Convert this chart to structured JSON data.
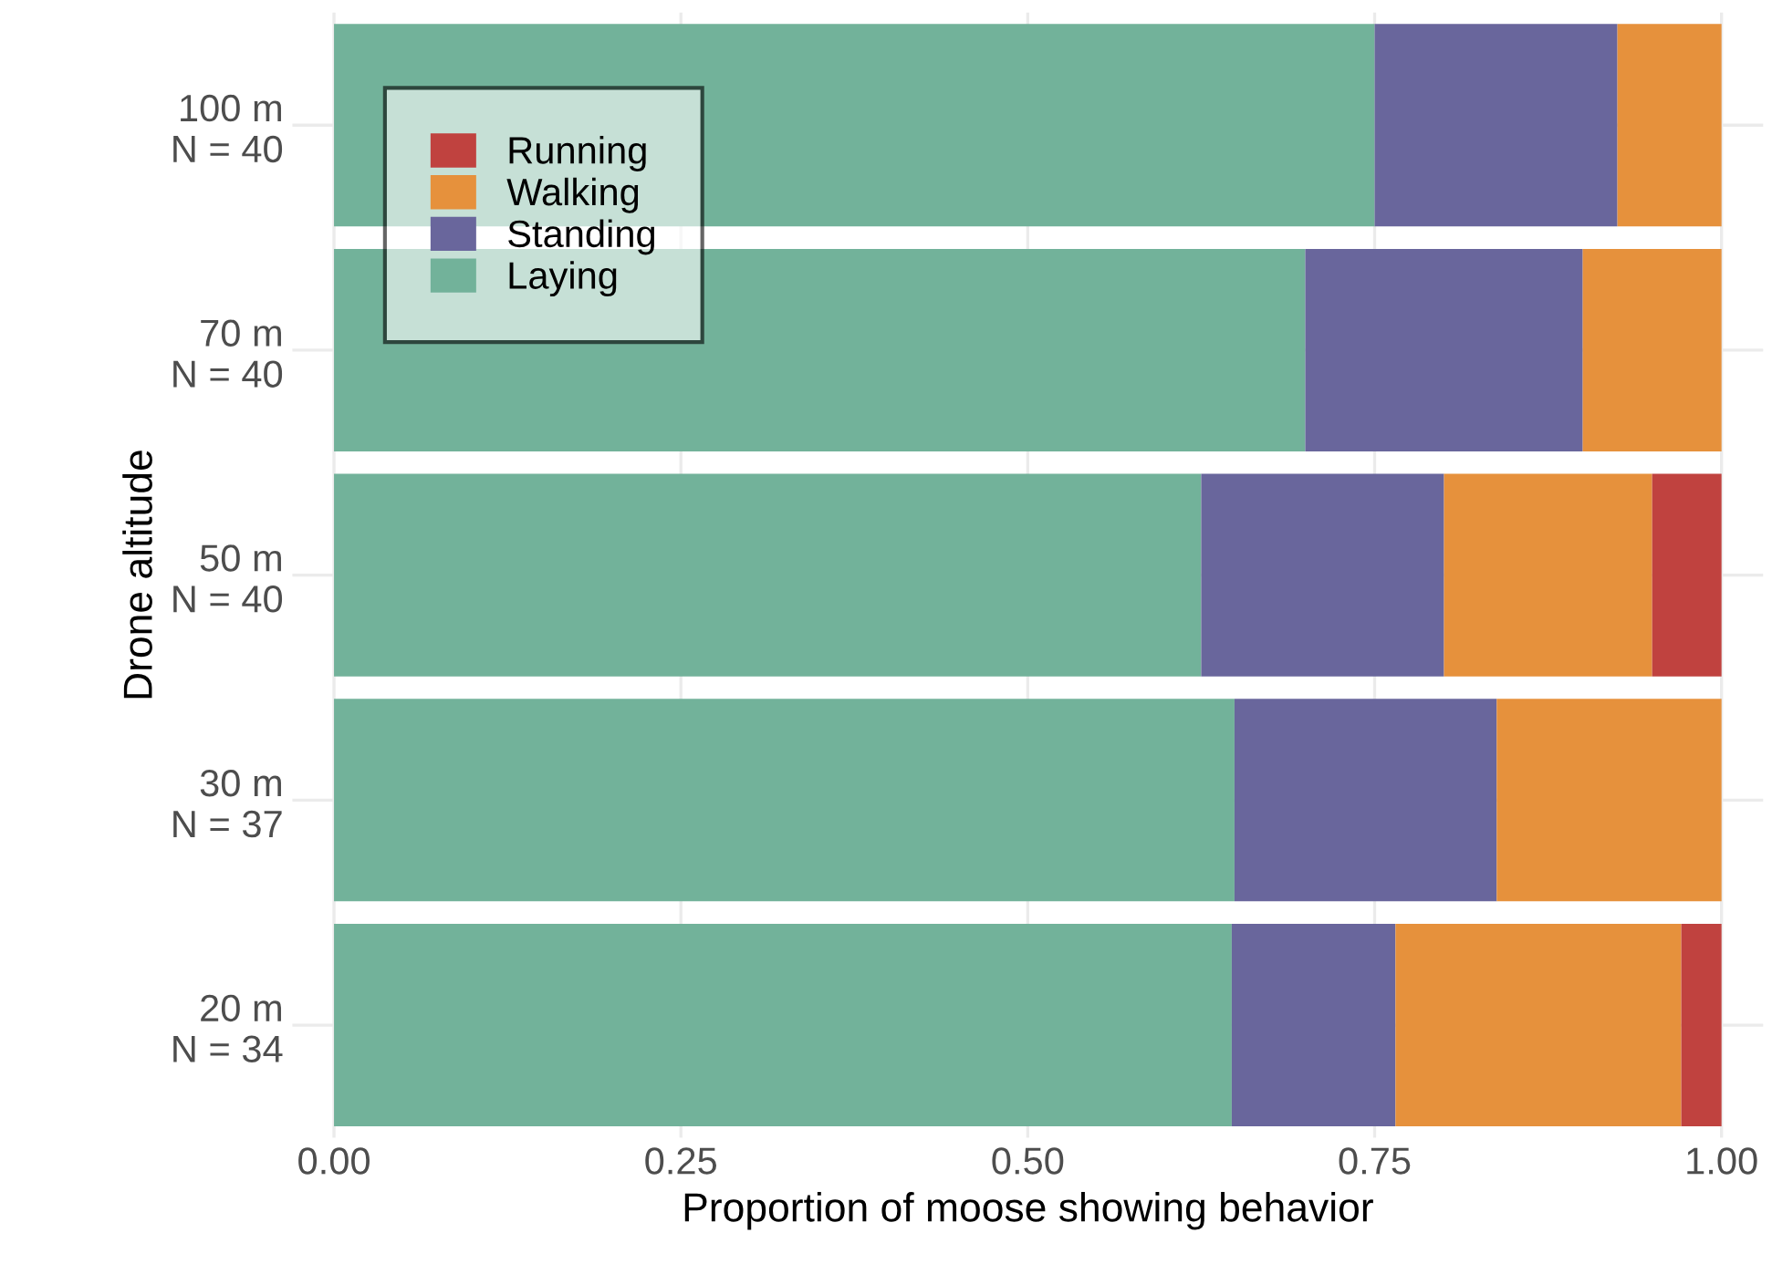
{
  "chart_data": {
    "type": "bar",
    "orientation": "horizontal",
    "stacked": true,
    "xlabel": "Proportion of moose showing behavior",
    "ylabel": "Drone altitude",
    "categories": [
      "100 m\nN = 40",
      "70 m\nN = 40",
      "50 m\nN = 40",
      "30 m\nN = 37",
      "20 m\nN = 34"
    ],
    "series": [
      {
        "name": "Laying",
        "color": "#72b29a",
        "values": [
          0.75,
          0.7,
          0.625,
          0.649,
          0.647
        ]
      },
      {
        "name": "Standing",
        "color": "#69669c",
        "values": [
          0.175,
          0.2,
          0.175,
          0.189,
          0.118
        ]
      },
      {
        "name": "Walking",
        "color": "#e6913c",
        "values": [
          0.075,
          0.1,
          0.15,
          0.162,
          0.206
        ]
      },
      {
        "name": "Running",
        "color": "#c0423f",
        "values": [
          0,
          0,
          0.05,
          0,
          0.029
        ]
      }
    ],
    "xlim": [
      -0.03,
      1.03
    ],
    "xticks": [
      {
        "value": 0,
        "label": "0.00"
      },
      {
        "value": 0.25,
        "label": "0.25"
      },
      {
        "value": 0.5,
        "label": "0.50"
      },
      {
        "value": 0.75,
        "label": "0.75"
      },
      {
        "value": 1,
        "label": "1.00"
      }
    ],
    "grid": true,
    "legend": "top left"
  }
}
